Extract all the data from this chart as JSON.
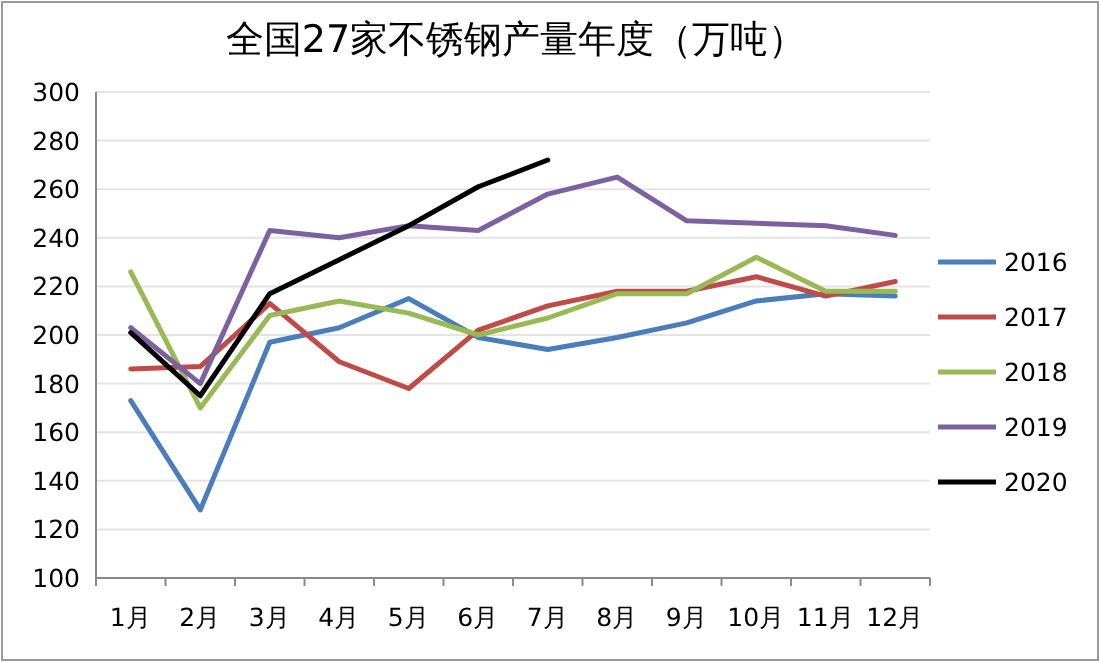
{
  "chart_data": {
    "type": "line",
    "title": "全国27家不锈钢产量年度（万吨）",
    "categories": [
      "1月",
      "2月",
      "3月",
      "4月",
      "5月",
      "6月",
      "7月",
      "8月",
      "9月",
      "10月",
      "11月",
      "12月"
    ],
    "series": [
      {
        "name": "2016",
        "color": "#4a7ebb",
        "values": [
          173,
          128,
          197,
          203,
          215,
          199,
          194,
          199,
          205,
          214,
          217,
          216
        ]
      },
      {
        "name": "2017",
        "color": "#be4b48",
        "values": [
          186,
          187,
          213,
          189,
          178,
          202,
          212,
          218,
          218,
          224,
          216,
          222
        ]
      },
      {
        "name": "2018",
        "color": "#98b954",
        "values": [
          226,
          170,
          208,
          214,
          209,
          200,
          207,
          217,
          217,
          232,
          218,
          218
        ]
      },
      {
        "name": "2019",
        "color": "#7d60a0",
        "values": [
          203,
          180,
          243,
          240,
          245,
          243,
          258,
          265,
          247,
          246,
          245,
          241
        ]
      },
      {
        "name": "2020",
        "color": "#000000",
        "values": [
          201,
          175,
          217,
          231,
          245,
          261,
          272,
          null,
          null,
          null,
          null,
          null
        ]
      }
    ],
    "ylim": [
      100,
      300
    ],
    "yticks": [
      100,
      120,
      140,
      160,
      180,
      200,
      220,
      240,
      260,
      280,
      300
    ],
    "grid": "y",
    "legend": "right",
    "line_style": "solid",
    "marker": "none"
  }
}
